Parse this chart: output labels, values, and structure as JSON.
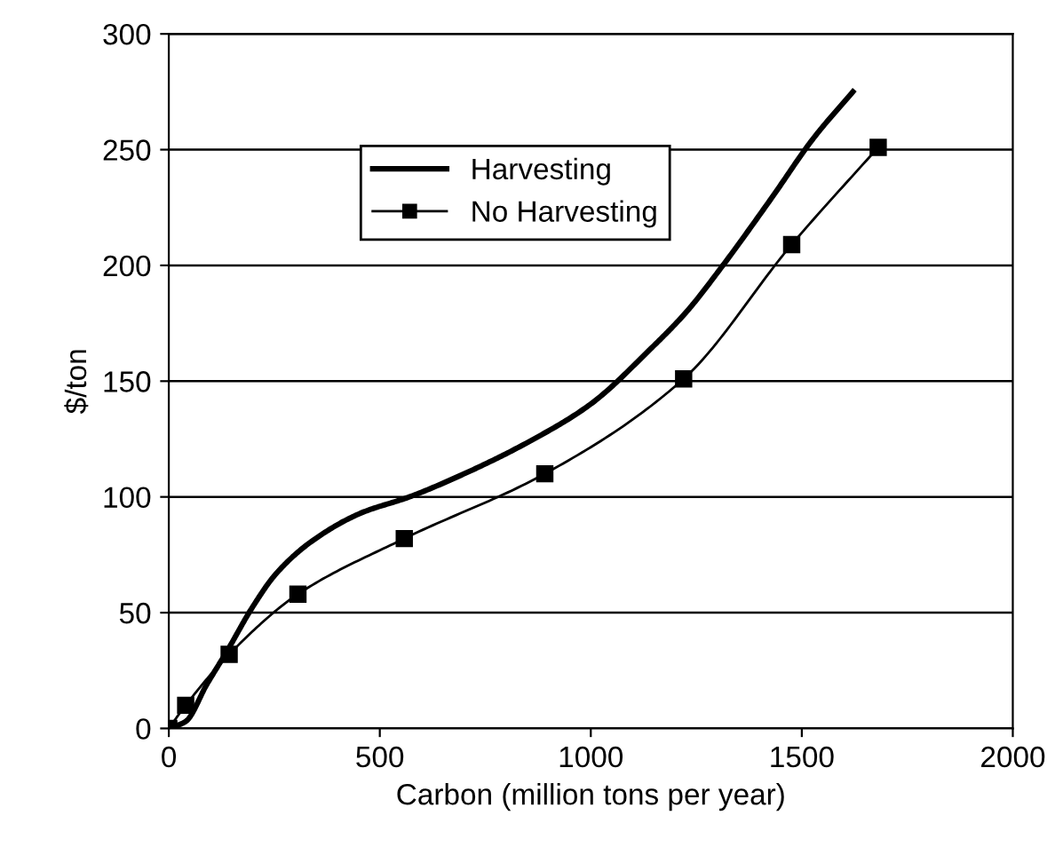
{
  "chart_data": {
    "type": "line",
    "xlabel": "Carbon (million tons per year)",
    "ylabel": "$/ton",
    "xlim": [
      0,
      2000
    ],
    "xticks": [
      0,
      500,
      1000,
      1500,
      2000
    ],
    "ylim": [
      0,
      300
    ],
    "yticks": [
      0,
      50,
      100,
      150,
      200,
      250,
      300
    ],
    "grid": "y",
    "legend": "top left",
    "line_style": "solid",
    "series": [
      {
        "name": "Harvesting",
        "color": "#000000",
        "marker": "none",
        "x": [
          0,
          40,
          90,
          140,
          197,
          255,
          340,
          455,
          570,
          712,
          855,
          999,
          1142,
          1227,
          1313,
          1428,
          1528,
          1621
        ],
        "values": [
          0,
          3,
          19,
          34,
          52,
          67,
          81,
          93,
          100,
          111,
          124,
          140,
          164,
          180,
          200,
          229,
          255,
          275
        ]
      },
      {
        "name": "No Harvesting",
        "color": "#000000",
        "marker": "square",
        "x": [
          0,
          40,
          143,
          306,
          558,
          891,
          1220,
          1476,
          1681
        ],
        "values": [
          0,
          10,
          32,
          58,
          82,
          110,
          151,
          209,
          251
        ]
      }
    ]
  }
}
